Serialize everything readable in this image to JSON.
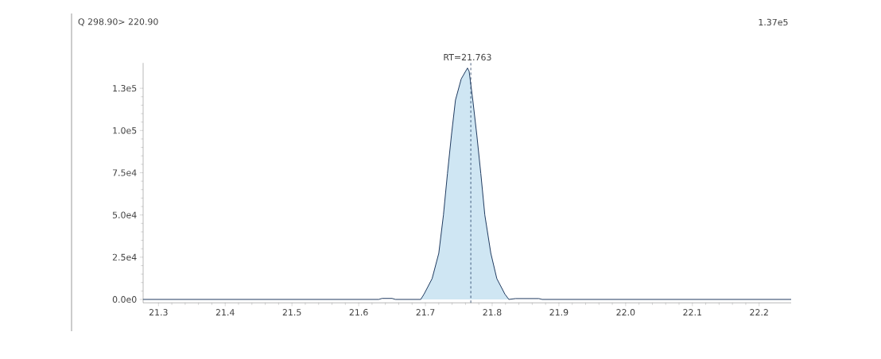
{
  "chart_data": {
    "type": "line",
    "title": "Q 298.90> 220.90",
    "xlim": [
      21.277,
      22.248
    ],
    "ylim": [
      -2000,
      140000
    ],
    "xticks": [
      21.3,
      21.4,
      21.5,
      21.6,
      21.7,
      21.8,
      21.9,
      {
        "value": 22.0,
        "label": "22.0"
      },
      22.1,
      22.2
    ],
    "yticks": [
      {
        "value": 0,
        "label": "0.0e0"
      },
      {
        "value": 25000,
        "label": "2.5e4"
      },
      {
        "value": 50000,
        "label": "5.0e4"
      },
      {
        "value": 75000,
        "label": "7.5e4"
      },
      {
        "value": 100000,
        "label": "1.0e5"
      },
      {
        "value": 125000,
        "label": "1.3e5"
      }
    ],
    "marker": "none",
    "series": [
      {
        "type": "area",
        "color": "#cfe6f3",
        "x": [
          21.693,
          21.698,
          21.71,
          21.72,
          21.727,
          21.733,
          21.739,
          21.745,
          21.7536,
          21.763,
          21.7655,
          21.771,
          21.777,
          21.783,
          21.789,
          21.798,
          21.807,
          21.819,
          21.825
        ],
        "values": [
          0,
          3200,
          12300,
          27300,
          50000,
          74500,
          97300,
          118000,
          130500,
          137000,
          135000,
          118000,
          97300,
          74500,
          50000,
          27300,
          12300,
          3200,
          0
        ]
      },
      {
        "color": "#1f3a5f",
        "x": [
          21.277,
          21.63,
          21.635,
          21.65,
          21.655,
          21.693,
          21.698,
          21.71,
          21.72,
          21.727,
          21.733,
          21.739,
          21.745,
          21.7536,
          21.763,
          21.7655,
          21.771,
          21.777,
          21.783,
          21.789,
          21.798,
          21.807,
          21.819,
          21.825,
          21.835,
          21.87,
          21.875,
          22.248
        ],
        "values": [
          0,
          0,
          600,
          600,
          0,
          0,
          3200,
          12300,
          27300,
          50000,
          74500,
          97300,
          118000,
          130500,
          137000,
          135000,
          118000,
          97300,
          74500,
          50000,
          27300,
          12300,
          3200,
          0,
          500,
          500,
          0,
          0
        ]
      }
    ],
    "ref_lines": [
      {
        "axis": "x",
        "value": 21.768,
        "color": "#1f3a5f",
        "line_style": "dashed"
      }
    ],
    "annotations": [
      {
        "text": "RT=21.763",
        "x": 21.763,
        "y": 137000
      },
      "1.37e5"
    ]
  }
}
